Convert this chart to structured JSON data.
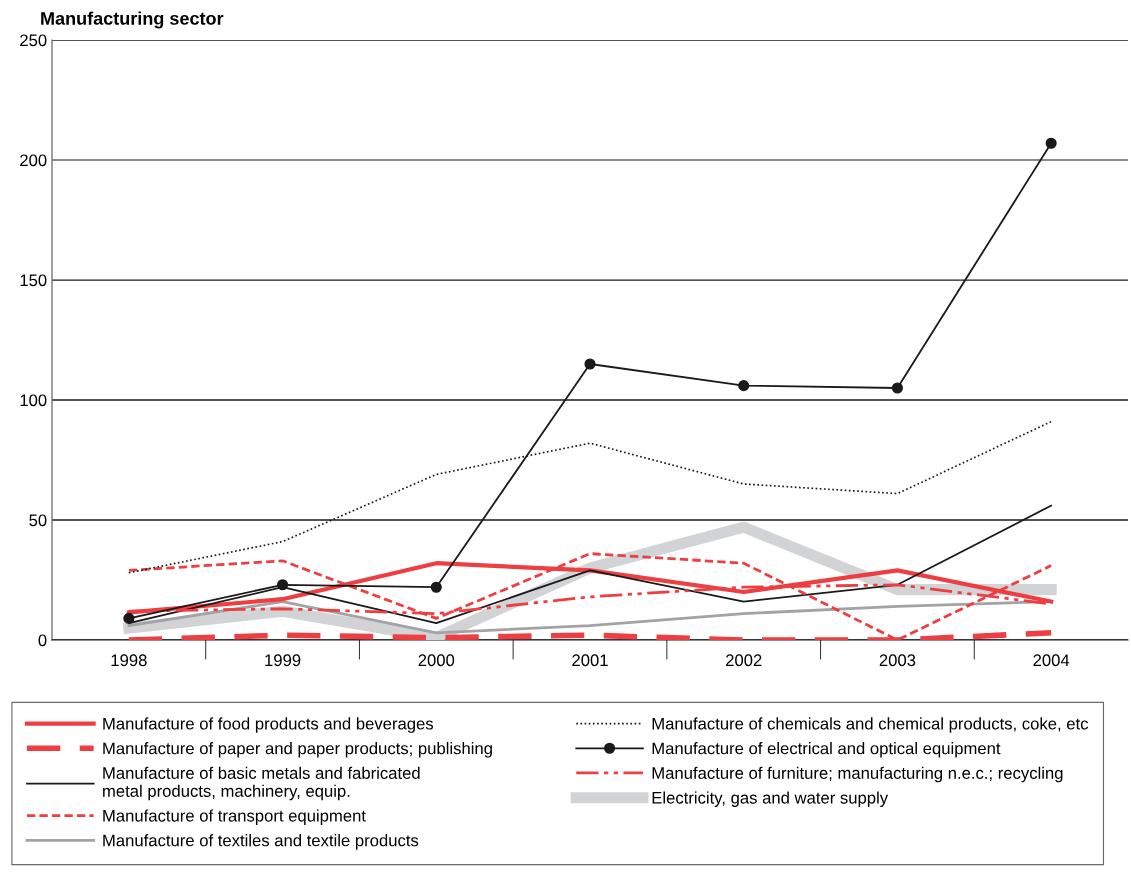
{
  "chart_data": {
    "type": "line",
    "title": "Manufacturing sector",
    "categories": [
      "1998",
      "1999",
      "2000",
      "2001",
      "2002",
      "2003",
      "2004"
    ],
    "ylim": [
      0,
      250
    ],
    "yticks": [
      0,
      50,
      100,
      150,
      200,
      250
    ],
    "grid": "y",
    "legend": "bottom",
    "series": [
      {
        "name": "Manufacture of food products and beverages",
        "color": "#ee3e42",
        "line_style": "solid",
        "values": [
          11.5,
          17,
          32,
          29,
          20,
          29,
          16
        ]
      },
      {
        "name": "Manufacture of paper and paper products; publishing",
        "color": "#ee3e42",
        "line_style": "dashed",
        "values": [
          0,
          2,
          1,
          2,
          0,
          0,
          3
        ]
      },
      {
        "name": "Manufacture of basic metals and fabricated\nmetal products, machinery, equip.",
        "color": "#1a1a1a",
        "line_style": "solid",
        "values": [
          7,
          22,
          7,
          29,
          16,
          23,
          56
        ]
      },
      {
        "name": "Manufacture of transport equipment",
        "color": "#ee3e42",
        "line_style": "dashed",
        "values": [
          29,
          33,
          9,
          36,
          32,
          0,
          31
        ]
      },
      {
        "name": "Manufacture of textiles and textile products",
        "color": "#a3a3a5",
        "line_style": "solid",
        "values": [
          6,
          16,
          3,
          6,
          11,
          14,
          16
        ]
      },
      {
        "name": "Manufacture of chemicals and chemical products, coke, etc",
        "color": "#1a1a1a",
        "line_style": "dotted",
        "values": [
          28,
          41,
          69,
          82,
          65,
          61,
          91
        ]
      },
      {
        "name": "Manufacture of electrical and optical equipment",
        "color": "#1a1a1a",
        "line_style": "solid",
        "marker": "circle",
        "values": [
          9,
          23,
          22,
          115,
          106,
          105,
          207
        ]
      },
      {
        "name": "Manufacture of furniture; manufacturing n.e.c.; recycling",
        "color": "#ee3e42",
        "line_style": "dashdot",
        "values": [
          12,
          13,
          11,
          18,
          22,
          23,
          15
        ]
      },
      {
        "name": "Electricity, gas and water supply",
        "color": "#d2d3d5",
        "line_style": "solid",
        "values": [
          5,
          12,
          1,
          30,
          47,
          21,
          21
        ]
      }
    ]
  }
}
